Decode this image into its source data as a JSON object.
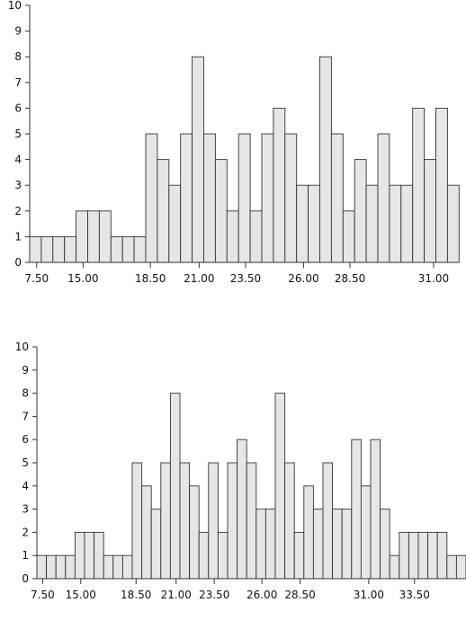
{
  "chart_data": [
    {
      "type": "bar",
      "title": "",
      "xlabel": "",
      "ylabel": "",
      "ylim": [
        0,
        10
      ],
      "yticks": [
        "0",
        "1",
        "2",
        "3",
        "4",
        "5",
        "6",
        "7",
        "8",
        "9",
        "10"
      ],
      "xticks": [
        "7.50",
        "15.00",
        "18.50",
        "21.00",
        "23.50",
        "26.00",
        "28.50",
        "31.00"
      ],
      "values": [
        1,
        1,
        1,
        1,
        2,
        2,
        2,
        1,
        1,
        1,
        5,
        4,
        3,
        5,
        8,
        5,
        4,
        2,
        5,
        2,
        5,
        6,
        5,
        3,
        3,
        8,
        5,
        2,
        4,
        3,
        5,
        3,
        3,
        6,
        4,
        6,
        3
      ],
      "colors": {
        "bar_fill": "#e6e6e6",
        "bar_stroke": "#333333",
        "axis": "#333333"
      }
    },
    {
      "type": "bar",
      "title": "",
      "xlabel": "",
      "ylabel": "",
      "ylim": [
        0,
        10
      ],
      "yticks": [
        "0",
        "1",
        "2",
        "3",
        "4",
        "5",
        "6",
        "7",
        "8",
        "9",
        "10"
      ],
      "xticks": [
        "7.50",
        "15.00",
        "18.50",
        "21.00",
        "23.50",
        "26.00",
        "28.50",
        "31.00",
        "33.50"
      ],
      "values": [
        1,
        1,
        1,
        1,
        2,
        2,
        2,
        1,
        1,
        1,
        5,
        4,
        3,
        5,
        8,
        5,
        4,
        2,
        5,
        2,
        5,
        6,
        5,
        3,
        3,
        8,
        5,
        2,
        4,
        3,
        5,
        3,
        3,
        6,
        4,
        6,
        3,
        1,
        2,
        2,
        2,
        2,
        2,
        1,
        1
      ],
      "colors": {
        "bar_fill": "#e6e6e6",
        "bar_stroke": "#333333",
        "axis": "#333333"
      }
    }
  ]
}
